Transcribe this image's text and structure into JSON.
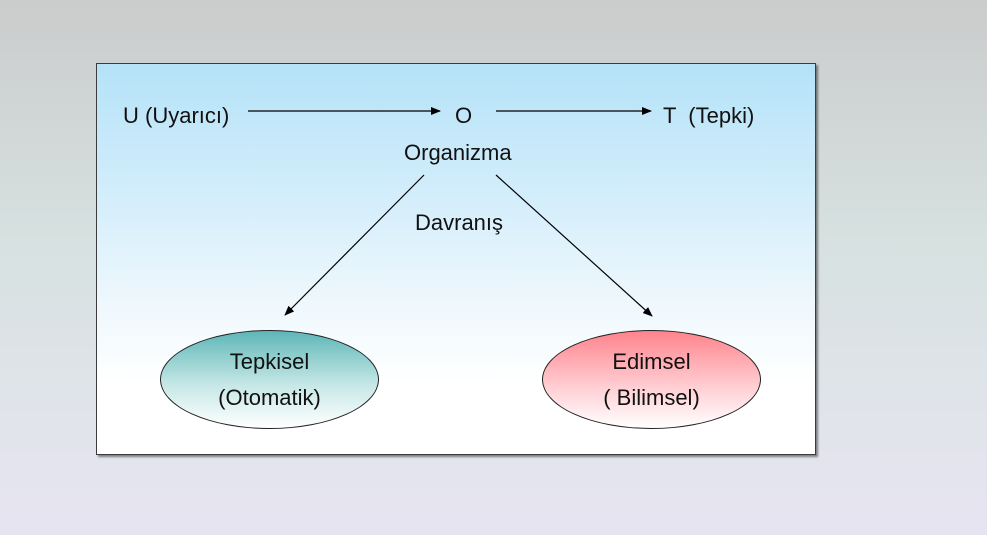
{
  "diagram": {
    "stimulus_label": "U (Uyarıcı)",
    "organism_symbol": "O",
    "response_label": "T  (Tepki)",
    "organism_label": "Organizma",
    "behavior_label": "Davranış",
    "left_category": {
      "title": "Tepkisel",
      "subtitle": "(Otomatik)",
      "color": "#5eb6b7"
    },
    "right_category": {
      "title": "Edimsel",
      "subtitle": "( Bilimsel)",
      "color": "#ff838c"
    },
    "panel_color": "#b5e2f8"
  }
}
